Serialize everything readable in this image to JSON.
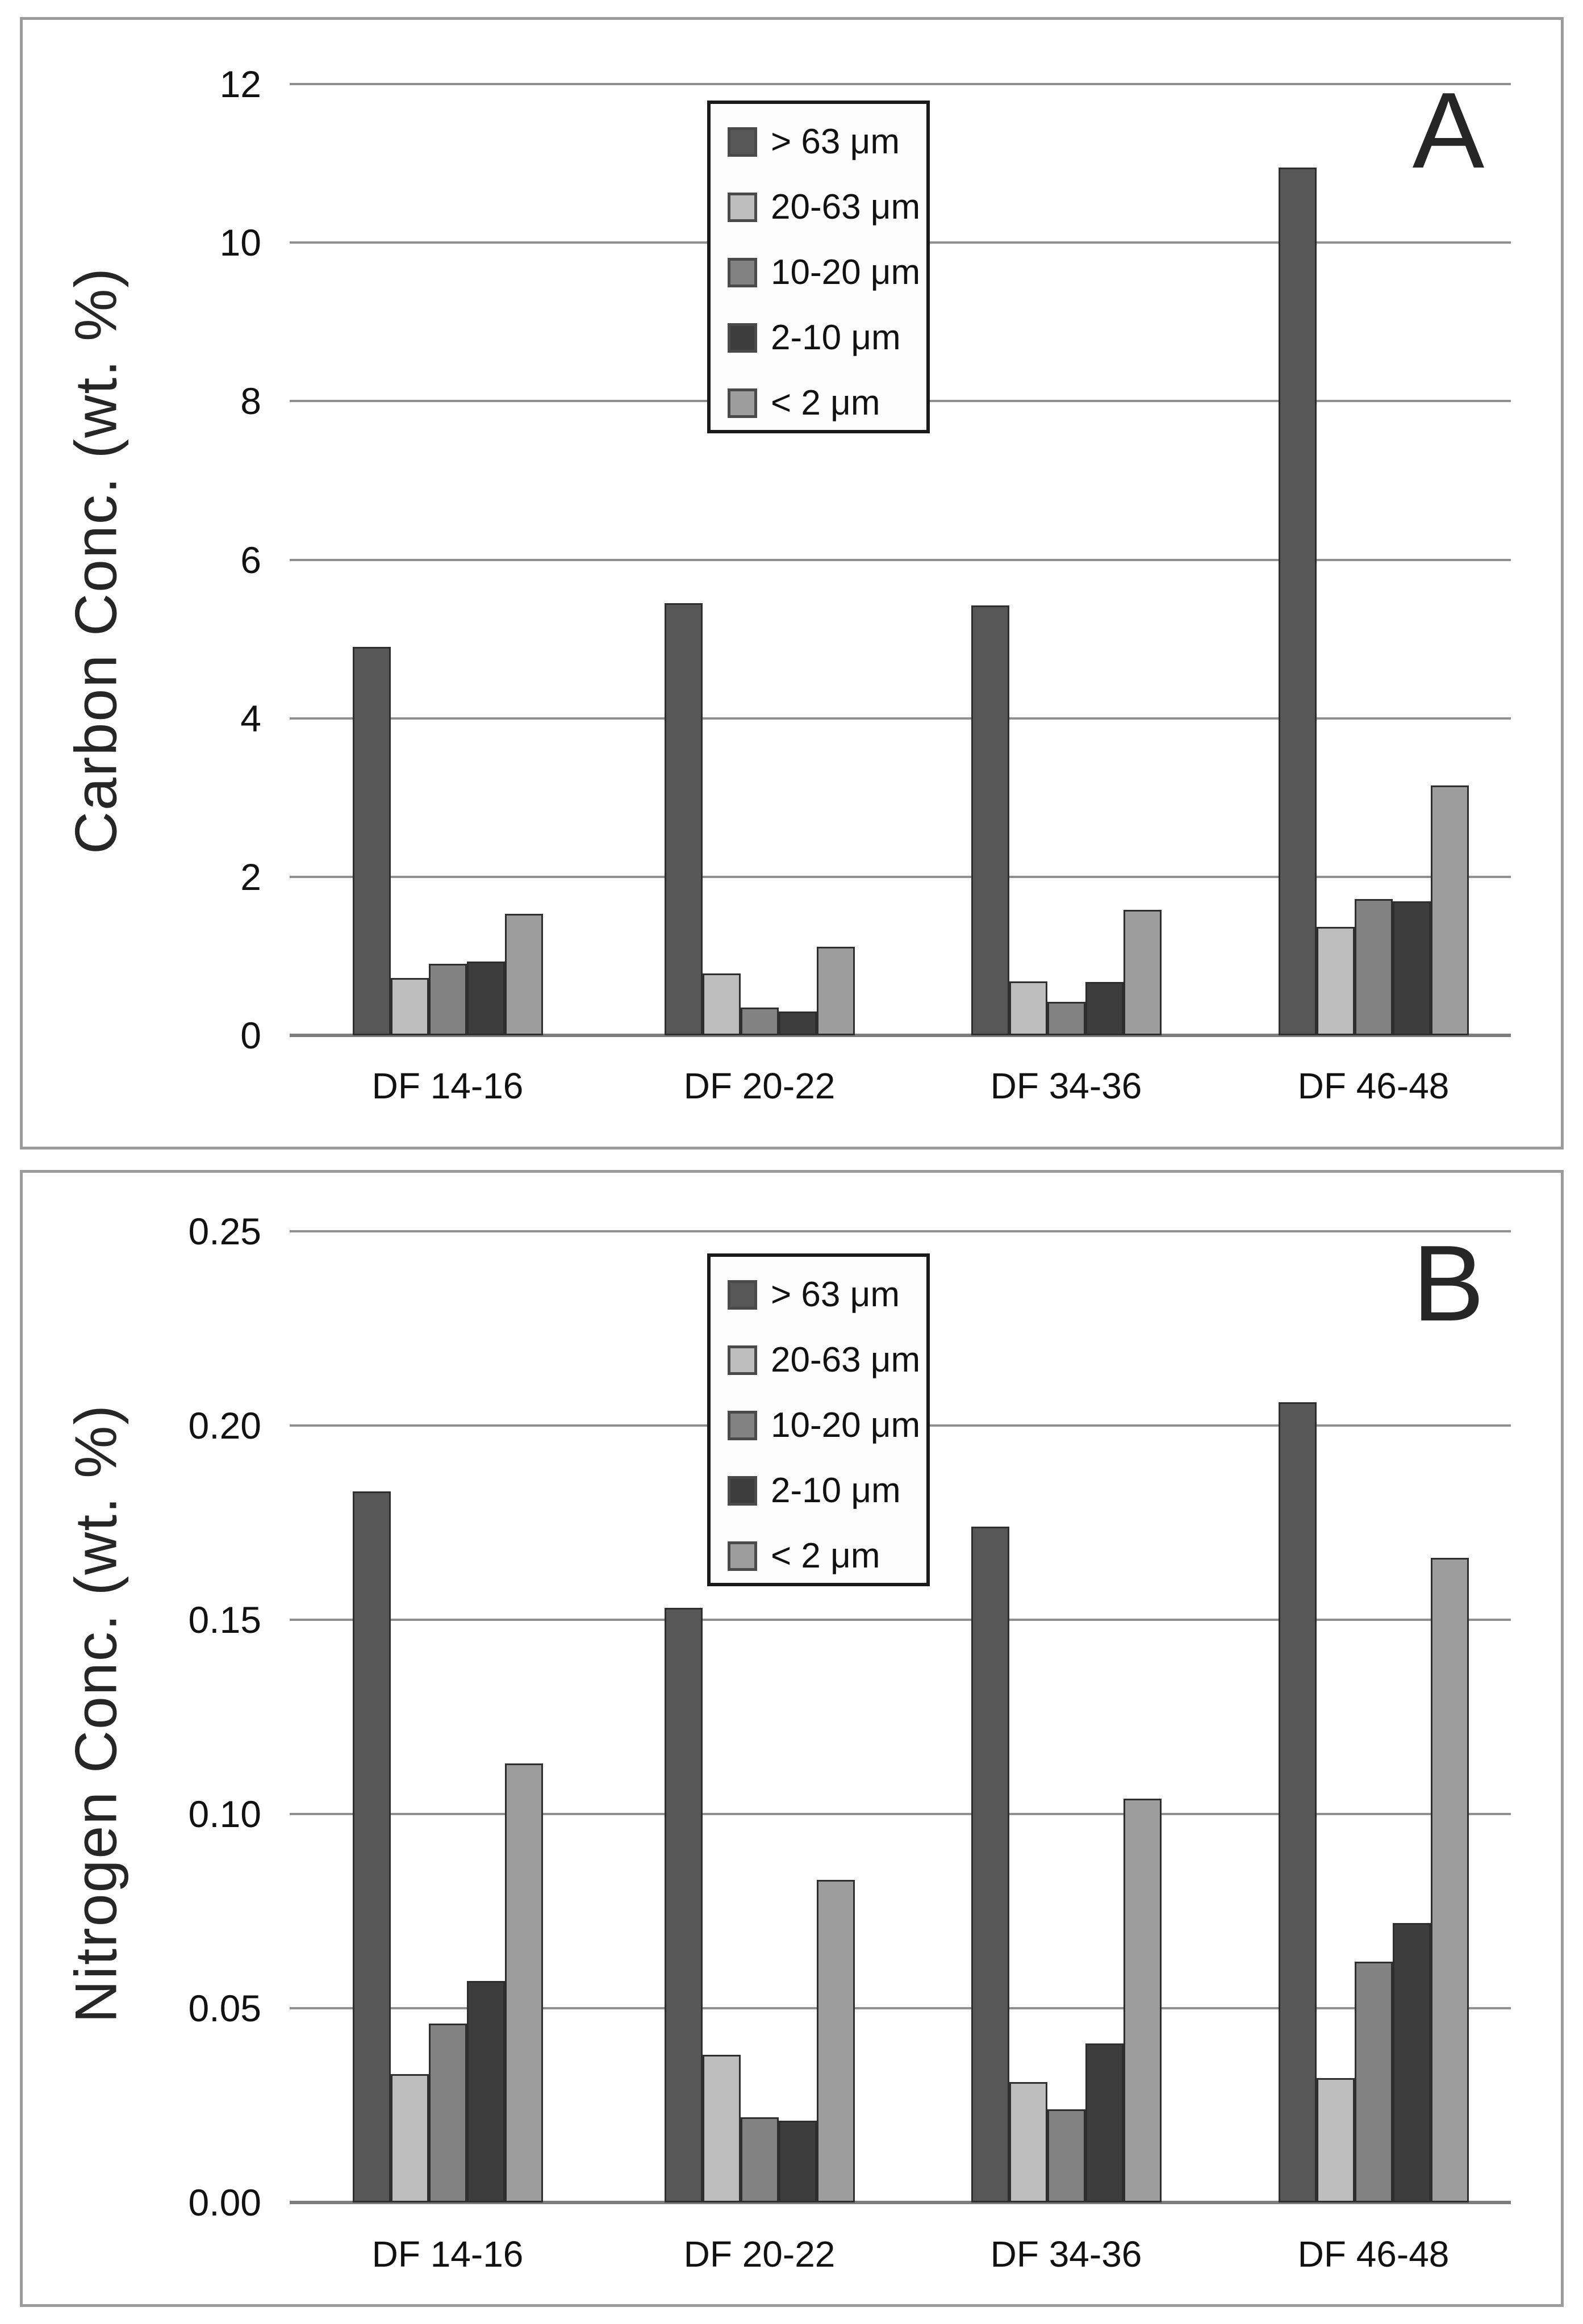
{
  "figure": {
    "background": "#ffffff",
    "panel_border_color": "#9b9b9b",
    "text_color": "#1a1a1a",
    "gridline_color": "#8f8f8f",
    "axis_line_color": "#7d7d7d",
    "bar_border_color": "#2e2e2e",
    "legend_border_color": "#1a1a1a"
  },
  "chart_data": [
    {
      "type": "bar",
      "panel_label": "A",
      "title": "",
      "xlabel": "",
      "ylabel": "Carbon Conc. (wt. %)",
      "categories": [
        "DF 14-16",
        "DF 20-22",
        "DF 34-36",
        "DF 46-48"
      ],
      "series": [
        {
          "name": "> 63 μm",
          "color": "#575757",
          "values": [
            4.9,
            5.45,
            5.42,
            10.95
          ]
        },
        {
          "name": "20-63 μm",
          "color": "#bdbdbd",
          "values": [
            0.72,
            0.78,
            0.68,
            1.37
          ]
        },
        {
          "name": "10-20 μm",
          "color": "#828282",
          "values": [
            0.9,
            0.35,
            0.42,
            1.72
          ]
        },
        {
          "name": "2-10 μm",
          "color": "#3d3d3d",
          "values": [
            0.93,
            0.3,
            0.67,
            1.69
          ]
        },
        {
          "name": "< 2 μm",
          "color": "#9d9d9d",
          "values": [
            1.53,
            1.12,
            1.58,
            3.15
          ]
        }
      ],
      "ylim": [
        0,
        12
      ],
      "ytick_values": [
        0,
        2,
        4,
        6,
        8,
        10,
        12
      ],
      "ytick_labels": [
        "0",
        "2",
        "4",
        "6",
        "8",
        "10",
        "12"
      ],
      "grid": true,
      "legend_position": "top-center-inside"
    },
    {
      "type": "bar",
      "panel_label": "B",
      "title": "",
      "xlabel": "",
      "ylabel": "Nitrogen Conc. (wt. %)",
      "categories": [
        "DF 14-16",
        "DF 20-22",
        "DF 34-36",
        "DF 46-48"
      ],
      "series": [
        {
          "name": "> 63 μm",
          "color": "#575757",
          "values": [
            0.183,
            0.153,
            0.174,
            0.206
          ]
        },
        {
          "name": "20-63 μm",
          "color": "#bdbdbd",
          "values": [
            0.033,
            0.038,
            0.031,
            0.032
          ]
        },
        {
          "name": "10-20 μm",
          "color": "#828282",
          "values": [
            0.046,
            0.022,
            0.024,
            0.062
          ]
        },
        {
          "name": "2-10 μm",
          "color": "#3d3d3d",
          "values": [
            0.057,
            0.021,
            0.041,
            0.072
          ]
        },
        {
          "name": "< 2 μm",
          "color": "#9d9d9d",
          "values": [
            0.113,
            0.083,
            0.104,
            0.166
          ]
        }
      ],
      "ylim": [
        0,
        0.25
      ],
      "ytick_values": [
        0,
        0.05,
        0.1,
        0.15,
        0.2,
        0.25
      ],
      "ytick_labels": [
        "0.00",
        "0.05",
        "0.10",
        "0.15",
        "0.20",
        "0.25"
      ],
      "grid": true,
      "legend_position": "top-center-inside"
    }
  ]
}
